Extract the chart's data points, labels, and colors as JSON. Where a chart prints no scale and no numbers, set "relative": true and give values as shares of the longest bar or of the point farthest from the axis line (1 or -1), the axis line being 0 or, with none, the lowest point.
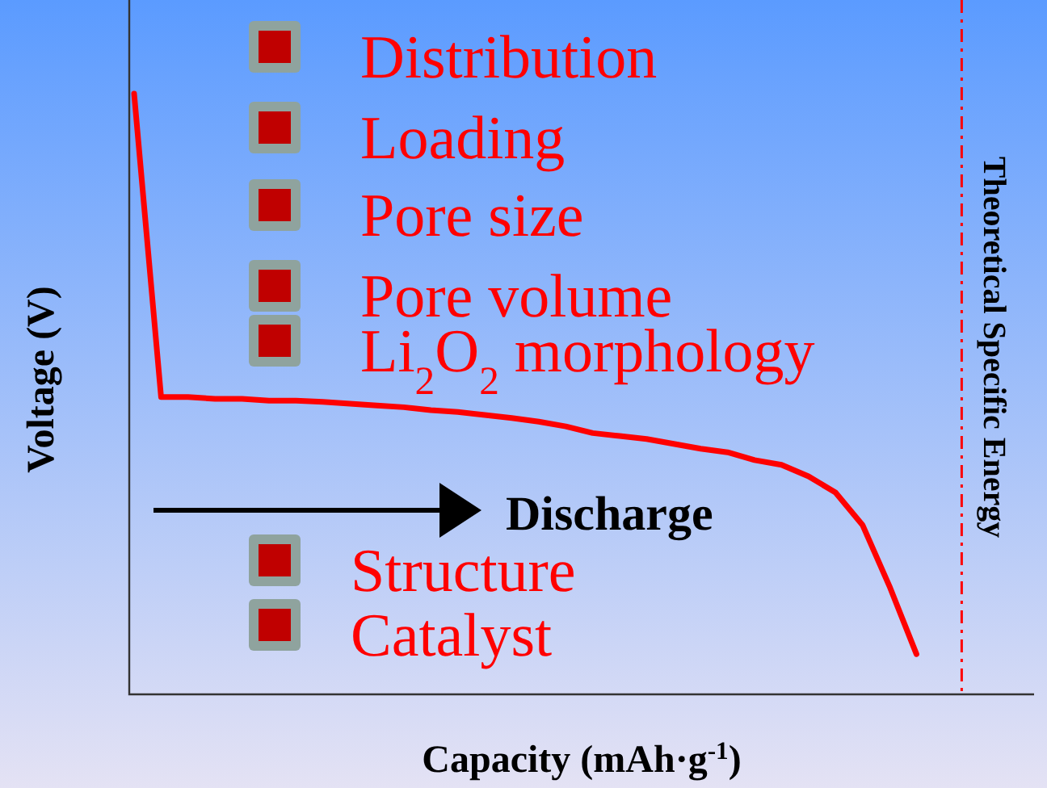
{
  "chart_data": {
    "type": "line",
    "relative": true,
    "xlabel": "Capacity (mAh·g$^{-1}$)",
    "ylabel": "Voltage (V)",
    "categories": [
      null,
      null,
      null,
      null,
      null,
      null,
      null,
      null,
      null,
      null,
      null,
      null,
      null,
      null,
      null,
      null,
      null,
      null,
      null,
      null,
      null,
      null,
      null,
      null,
      null,
      null,
      null,
      null,
      null,
      null
    ],
    "series": [
      {
        "color": "#ff0000",
        "values": [
          1,
          0.495,
          0.495,
          0.492,
          0.492,
          0.489,
          0.489,
          0.487,
          0.484,
          0.481,
          0.478,
          0.473,
          0.47,
          0.465,
          0.46,
          0.454,
          0.446,
          0.435,
          0.43,
          0.425,
          0.417,
          0.409,
          0.403,
          0.39,
          0.382,
          0.363,
          0.336,
          0.282,
          0.18,
          0.067
        ]
      }
    ],
    "annotations": [
      "Distribution",
      "Loading",
      "Pore size",
      "Pore volume",
      "Li$_{2}$O$_{2}$ morphology",
      "Discharge",
      "Structure",
      "Catalyst",
      "Theoretical Specific Energy"
    ]
  }
}
